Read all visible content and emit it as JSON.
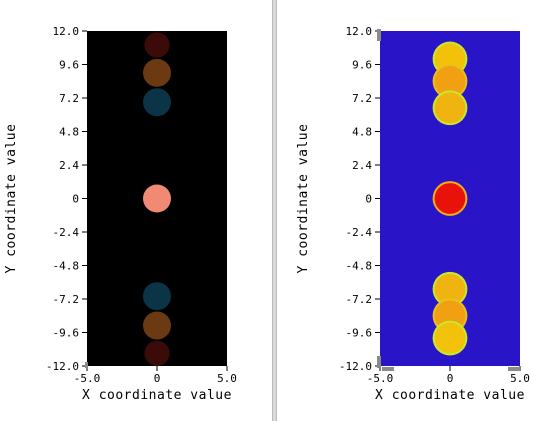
{
  "chart_data": [
    {
      "type": "heatmap",
      "colormap": "dark",
      "background": "#000000",
      "xlabel": "X coordinate value",
      "ylabel": "Y coordinate value",
      "xlim": [
        -5.0,
        5.0
      ],
      "ylim": [
        -12.0,
        12.0
      ],
      "xticks": [
        "-5.0",
        "0",
        "5.0"
      ],
      "xtick_values": [
        -5.0,
        0,
        5.0
      ],
      "yticks": [
        "12.0",
        "9.6",
        "7.2",
        "4.8",
        "2.4",
        "0",
        "-2.4",
        "-4.8",
        "-7.2",
        "-9.6",
        "-12.0"
      ],
      "ytick_values": [
        12.0,
        9.6,
        7.2,
        4.8,
        2.4,
        0,
        -2.4,
        -4.8,
        -7.2,
        -9.6,
        -12.0
      ],
      "blobs": [
        {
          "x": 0,
          "y": 11.0,
          "r": 0.9,
          "color": "#3a0b08"
        },
        {
          "x": 0,
          "y": 9.0,
          "r": 1.0,
          "color": "#6b3a12"
        },
        {
          "x": 0,
          "y": 6.9,
          "r": 1.0,
          "color": "#0b3447"
        },
        {
          "x": 0,
          "y": 0,
          "r": 1.0,
          "color": "#f08a72"
        },
        {
          "x": 0,
          "y": -7.0,
          "r": 1.0,
          "color": "#0b3447"
        },
        {
          "x": 0,
          "y": -9.1,
          "r": 1.0,
          "color": "#6b3a12"
        },
        {
          "x": 0,
          "y": -11.1,
          "r": 0.9,
          "color": "#3a0b08"
        }
      ]
    },
    {
      "type": "heatmap",
      "colormap": "jet",
      "background": "#2a14c8",
      "xlabel": "X coordinate value",
      "ylabel": "Y coordinate value",
      "xlim": [
        -5.0,
        5.0
      ],
      "ylim": [
        -12.0,
        12.0
      ],
      "xticks": [
        "-5.0",
        "0",
        "5.0"
      ],
      "xtick_values": [
        -5.0,
        0,
        5.0
      ],
      "yticks": [
        "12.0",
        "9.6",
        "7.2",
        "4.8",
        "2.4",
        "0",
        "-2.4",
        "-4.8",
        "-7.2",
        "-9.6",
        "-12.0"
      ],
      "ytick_values": [
        12.0,
        9.6,
        7.2,
        4.8,
        2.4,
        0,
        -2.4,
        -4.8,
        -7.2,
        -9.6,
        -12.0
      ],
      "blobs": [
        {
          "x": 0,
          "y": 10.0,
          "r": 1.1,
          "color": "#f2c20a",
          "edge": "#c8e830"
        },
        {
          "x": 0,
          "y": 8.4,
          "r": 1.1,
          "color": "#f0a010",
          "edge": "#e8c020"
        },
        {
          "x": 0,
          "y": 6.5,
          "r": 1.1,
          "color": "#f0b410",
          "edge": "#c8e830"
        },
        {
          "x": 0,
          "y": 0,
          "r": 1.1,
          "color": "#e8120a",
          "edge": "#f0b010"
        },
        {
          "x": 0,
          "y": -6.5,
          "r": 1.1,
          "color": "#f0b410",
          "edge": "#c8e830"
        },
        {
          "x": 0,
          "y": -8.4,
          "r": 1.1,
          "color": "#f0a010",
          "edge": "#e8c020"
        },
        {
          "x": 0,
          "y": -10.0,
          "r": 1.1,
          "color": "#f2c20a",
          "edge": "#c8e830"
        }
      ]
    }
  ]
}
